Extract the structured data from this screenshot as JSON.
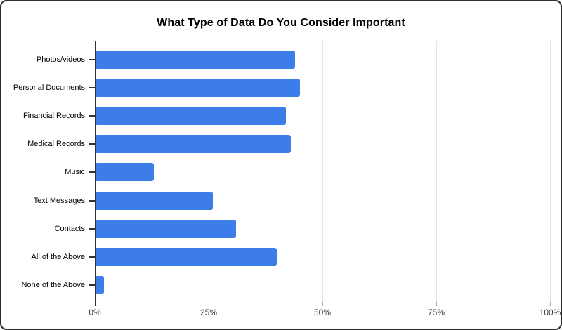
{
  "frame": {
    "background": "#ffffff",
    "border_color": "#2d2d2d"
  },
  "chart_data": {
    "type": "bar",
    "orientation": "horizontal",
    "title": "What Type of Data Do You Consider Important",
    "categories": [
      "Photos/videos",
      "Personal Documents",
      "Financial Records",
      "Medical Records",
      "Music",
      "Text Messages",
      "Contacts",
      "All of the Above",
      "None of the Above"
    ],
    "values": [
      44,
      45,
      42,
      43,
      13,
      26,
      31,
      40,
      2
    ],
    "unit": "%",
    "xlabel": "",
    "ylabel": "",
    "xlim": [
      0,
      100
    ],
    "x_tick_values": [
      0,
      25,
      50,
      75,
      100
    ],
    "x_tick_labels": [
      "0%",
      "25%",
      "50%",
      "75%",
      "100%"
    ],
    "grid": true,
    "legend": false,
    "bar_color": "#3d7de9",
    "gridline_color": "#e4e4e4",
    "axis_color": "#333333",
    "tick_color": "#a8a8a8"
  }
}
